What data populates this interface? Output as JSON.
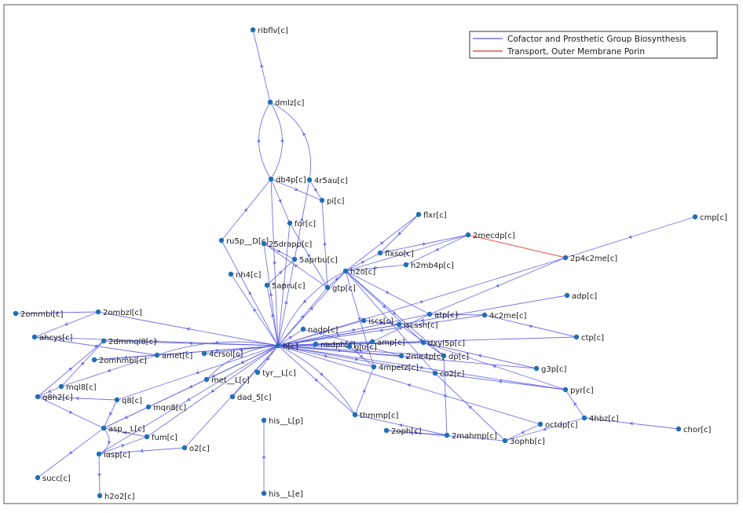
{
  "colors": {
    "cofactor": "#5a5ae0",
    "transport": "#e03030",
    "node": "#1f6fb4",
    "axes": "#555555"
  },
  "legend": {
    "items": [
      {
        "label": "Cofactor and Prosthetic Group Biosynthesis",
        "color": "#5a5ae0"
      },
      {
        "label": "Transport, Outer Membrane Porin",
        "color": "#e03030"
      }
    ]
  },
  "nodes": [
    {
      "id": "ribflv[c]"
    },
    {
      "id": "dmlz[c]"
    },
    {
      "id": "db4p[c]"
    },
    {
      "id": "4r5au[c]"
    },
    {
      "id": "pi[c]"
    },
    {
      "id": "for[c]"
    },
    {
      "id": "ru5p__D[c]"
    },
    {
      "id": "25drapp[c]"
    },
    {
      "id": "5aprbu[c]"
    },
    {
      "id": "nh4[c]"
    },
    {
      "id": "h2o[c]"
    },
    {
      "id": "5apru[c]"
    },
    {
      "id": "gtp[c]"
    },
    {
      "id": "flxr[c]"
    },
    {
      "id": "flxso[c]"
    },
    {
      "id": "h2mb4p[c]"
    },
    {
      "id": "2mecdp[c]"
    },
    {
      "id": "cmp[c]"
    },
    {
      "id": "2p4c2me[c]"
    },
    {
      "id": "adp[c]"
    },
    {
      "id": "atp[c]"
    },
    {
      "id": "4c2me[c]"
    },
    {
      "id": "ctp[c]"
    },
    {
      "id": "iscs[c]"
    },
    {
      "id": "iscssh[c]"
    },
    {
      "id": "nadp[c]"
    },
    {
      "id": "h[c]"
    },
    {
      "id": "nadph[c]"
    },
    {
      "id": "glu[c]"
    },
    {
      "id": "amp[c]"
    },
    {
      "id": "dxyl5p[c]"
    },
    {
      "id": "2me4p[c]"
    },
    {
      "id": "dp[c]"
    },
    {
      "id": "4mpetz[c]"
    },
    {
      "id": "co2[c]"
    },
    {
      "id": "g3p[c]"
    },
    {
      "id": "pyr[c]"
    },
    {
      "id": "4hbz[c]"
    },
    {
      "id": "chor[c]"
    },
    {
      "id": "octdp[c]"
    },
    {
      "id": "3ophb[c]"
    },
    {
      "id": "2mahmp[c]"
    },
    {
      "id": "2oph[c]"
    },
    {
      "id": "thmmp[c]"
    },
    {
      "id": "tyr__L[c]"
    },
    {
      "id": "met__L[c]"
    },
    {
      "id": "dad_5[c]"
    },
    {
      "id": "4crsol[c]"
    },
    {
      "id": "amet[c]"
    },
    {
      "id": "2ommbl[c]"
    },
    {
      "id": "2ombzl[c]"
    },
    {
      "id": "ahcys[c]"
    },
    {
      "id": "2dmmql8[c]"
    },
    {
      "id": "2omhmbl[c]"
    },
    {
      "id": "mql8[c]"
    },
    {
      "id": "q8h2[c]"
    },
    {
      "id": "q8[c]"
    },
    {
      "id": "mqn8[c]"
    },
    {
      "id": "asp__L[c]"
    },
    {
      "id": "fum[c]"
    },
    {
      "id": "iasp[c]"
    },
    {
      "id": "o2[c]"
    },
    {
      "id": "succ[c]"
    },
    {
      "id": "h2o2[c]"
    },
    {
      "id": "his__L[p]"
    },
    {
      "id": "his__L[e]"
    }
  ]
}
